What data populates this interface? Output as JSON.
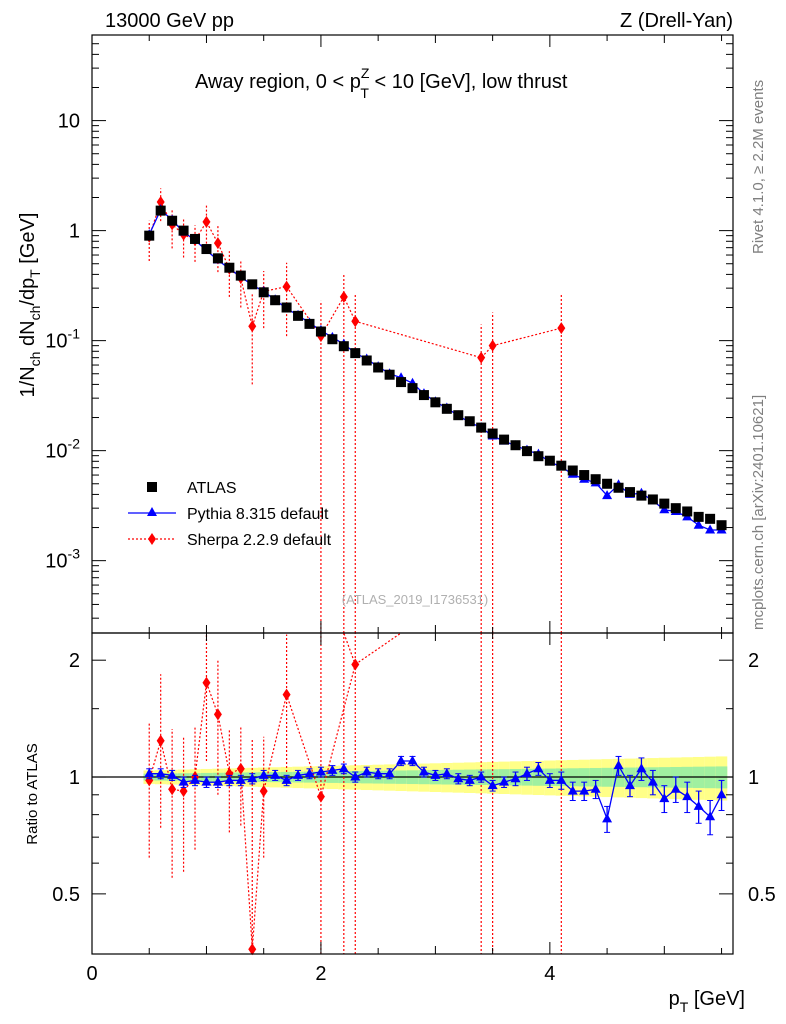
{
  "header": {
    "left": "13000 GeV pp",
    "right": "Z (Drell-Yan)"
  },
  "side_text": {
    "rivet": "Rivet 4.1.0, ≥ 2.2M events",
    "mcplots": "mcplots.cern.ch [arXiv:2401.10621]"
  },
  "colors": {
    "atlas": "#000000",
    "pythia": "#0000ff",
    "sherpa": "#ff0000",
    "band_inner": "#a0f0a0",
    "band_outer": "#ffff88"
  },
  "chart_data": {
    "type": "scatter",
    "title": "Away region, 0 < p_T^Z < 10 [GeV], low thrust",
    "title_parts": [
      "Away region, 0 < p",
      "Z",
      "T",
      " < 10 [GeV], low thrust"
    ],
    "analysis_id": "(ATLAS_2019_I1736531)",
    "xlabel": "p_T [GeV]",
    "xlabel_parts": [
      "p",
      "T",
      " [GeV]"
    ],
    "ylabel": "1/N_ch dN_ch/dp_T [GeV]",
    "ylabel_parts": [
      "1/N",
      "ch",
      " dN",
      "ch",
      "/dp",
      "T",
      " [GeV]"
    ],
    "ratio_ylabel": "Ratio to ATLAS",
    "xlim": [
      0,
      5.6
    ],
    "ylim": [
      0.00022,
      60
    ],
    "yscale": "log",
    "ratio_ylim": [
      0.35,
      2.35
    ],
    "x_ticks": [
      0,
      2,
      4
    ],
    "x_tick_labels": [
      "0",
      "2",
      "4"
    ],
    "y_tick_labels": [
      {
        "mant": "10",
        "exp": "-3",
        "value": 0.001
      },
      {
        "mant": "10",
        "exp": "-2",
        "value": 0.01
      },
      {
        "mant": "10",
        "exp": "-1",
        "value": 0.1
      },
      {
        "mant": "1",
        "exp": "",
        "value": 1
      },
      {
        "mant": "10",
        "exp": "",
        "value": 10
      }
    ],
    "ratio_y_ticks": [
      0.5,
      1,
      2
    ],
    "ratio_y_tick_labels": [
      "0.5",
      "1",
      "2"
    ],
    "legend": [
      "ATLAS",
      "Pythia 8.315 default",
      "Sherpa 2.2.9 default"
    ],
    "legend_position": "left",
    "x": [
      0.5,
      0.6,
      0.7,
      0.8,
      0.9,
      1.0,
      1.1,
      1.2,
      1.3,
      1.4,
      1.5,
      1.6,
      1.7,
      1.8,
      1.9,
      2.0,
      2.1,
      2.2,
      2.3,
      2.4,
      2.5,
      2.6,
      2.7,
      2.8,
      2.9,
      3.0,
      3.1,
      3.2,
      3.3,
      3.4,
      3.5,
      3.6,
      3.7,
      3.8,
      3.9,
      4.0,
      4.1,
      4.2,
      4.3,
      4.4,
      4.5,
      4.6,
      4.7,
      4.8,
      4.9,
      5.0,
      5.1,
      5.2,
      5.3,
      5.4,
      5.5
    ],
    "series": [
      {
        "name": "ATLAS",
        "values": [
          0.9,
          1.52,
          1.23,
          1.0,
          0.84,
          0.68,
          0.56,
          0.46,
          0.39,
          0.325,
          0.275,
          0.233,
          0.2,
          0.168,
          0.142,
          0.121,
          0.103,
          0.089,
          0.077,
          0.066,
          0.057,
          0.049,
          0.042,
          0.037,
          0.032,
          0.0275,
          0.024,
          0.021,
          0.0185,
          0.0162,
          0.0143,
          0.0126,
          0.0112,
          0.0099,
          0.0089,
          0.0081,
          0.0073,
          0.0066,
          0.006,
          0.0055,
          0.005,
          0.0046,
          0.0042,
          0.0039,
          0.0036,
          0.0033,
          0.003,
          0.0028,
          0.0025,
          0.0024,
          0.0021
        ],
        "band_inner_rel": 0.02,
        "band_outer_rel": 0.04
      },
      {
        "name": "Pythia 8.315 default",
        "values": [
          0.92,
          1.55,
          1.25,
          0.97,
          0.82,
          0.66,
          0.54,
          0.45,
          0.38,
          0.32,
          0.28,
          0.235,
          0.196,
          0.17,
          0.145,
          0.124,
          0.107,
          0.093,
          0.077,
          0.068,
          0.058,
          0.05,
          0.046,
          0.041,
          0.033,
          0.0278,
          0.0244,
          0.0208,
          0.0181,
          0.0162,
          0.0136,
          0.0122,
          0.0111,
          0.0101,
          0.0093,
          0.0079,
          0.0071,
          0.0061,
          0.0055,
          0.0051,
          0.0039,
          0.0049,
          0.004,
          0.0041,
          0.0035,
          0.0029,
          0.0028,
          0.0025,
          0.0021,
          0.0019,
          0.0019
        ],
        "ratio": [
          1.02,
          1.02,
          1.01,
          0.97,
          0.98,
          0.97,
          0.97,
          0.98,
          0.98,
          0.99,
          1.01,
          1.01,
          0.98,
          1.01,
          1.02,
          1.03,
          1.04,
          1.05,
          1.0,
          1.03,
          1.02,
          1.02,
          1.1,
          1.1,
          1.03,
          1.01,
          1.02,
          0.99,
          0.98,
          1.0,
          0.95,
          0.97,
          0.99,
          1.02,
          1.05,
          0.98,
          0.98,
          0.92,
          0.92,
          0.93,
          0.78,
          1.07,
          0.95,
          1.05,
          0.97,
          0.88,
          0.93,
          0.89,
          0.84,
          0.79,
          0.9
        ],
        "ratio_err": [
          0.03,
          0.03,
          0.03,
          0.03,
          0.03,
          0.03,
          0.03,
          0.03,
          0.03,
          0.03,
          0.03,
          0.03,
          0.03,
          0.03,
          0.03,
          0.03,
          0.03,
          0.03,
          0.03,
          0.03,
          0.03,
          0.03,
          0.03,
          0.03,
          0.03,
          0.03,
          0.03,
          0.03,
          0.03,
          0.03,
          0.03,
          0.03,
          0.04,
          0.04,
          0.04,
          0.04,
          0.05,
          0.05,
          0.05,
          0.05,
          0.06,
          0.06,
          0.06,
          0.07,
          0.07,
          0.07,
          0.07,
          0.08,
          0.08,
          0.08,
          0.08
        ]
      },
      {
        "name": "Sherpa 2.2.9 default",
        "x": [
          0.5,
          0.6,
          0.7,
          0.8,
          0.9,
          1.0,
          1.1,
          1.2,
          1.3,
          1.4,
          1.5,
          1.7,
          2.0,
          2.2,
          2.3,
          3.4,
          3.5,
          4.1
        ],
        "values": [
          0.88,
          1.82,
          1.14,
          0.92,
          0.82,
          1.2,
          0.77,
          0.45,
          0.37,
          0.135,
          0.28,
          0.31,
          0.11,
          0.25,
          0.15,
          0.07,
          0.09,
          0.13
        ],
        "err_lo": [
          0.35,
          0.6,
          0.45,
          0.35,
          0.3,
          0.5,
          0.35,
          0.2,
          0.17,
          0.095,
          0.15,
          0.2,
          0.11,
          0.25,
          0.15,
          0.07,
          0.09,
          0.13
        ],
        "err_hi": [
          0.35,
          0.6,
          0.45,
          0.35,
          0.3,
          0.5,
          0.35,
          0.2,
          0.17,
          0.13,
          0.15,
          0.2,
          0.12,
          0.15,
          0.12,
          0.07,
          0.09,
          0.13
        ],
        "ratio_x": [
          0.5,
          0.6,
          0.7,
          0.8,
          0.9,
          1.0,
          1.1,
          1.2,
          1.3,
          1.4,
          1.5,
          1.7,
          2.0,
          2.3
        ],
        "ratio": [
          0.98,
          1.24,
          0.93,
          0.92,
          1.0,
          1.75,
          1.45,
          1.02,
          1.05,
          0.36,
          0.92,
          1.63,
          0.89,
          1.95
        ],
        "ratio_err_lo": [
          0.36,
          0.5,
          0.38,
          0.35,
          0.35,
          0.65,
          0.55,
          0.3,
          0.3,
          0.1,
          0.3,
          0.6,
          0.6,
          1.6
        ],
        "ratio_err_hi": [
          0.4,
          0.6,
          0.4,
          0.35,
          0.35,
          0.7,
          0.55,
          0.3,
          0.3,
          0.9,
          0.35,
          0.7,
          1.5,
          0.5
        ],
        "offscale_ratio_x": [
          2.2,
          3.4,
          3.5,
          4.1
        ]
      }
    ]
  }
}
